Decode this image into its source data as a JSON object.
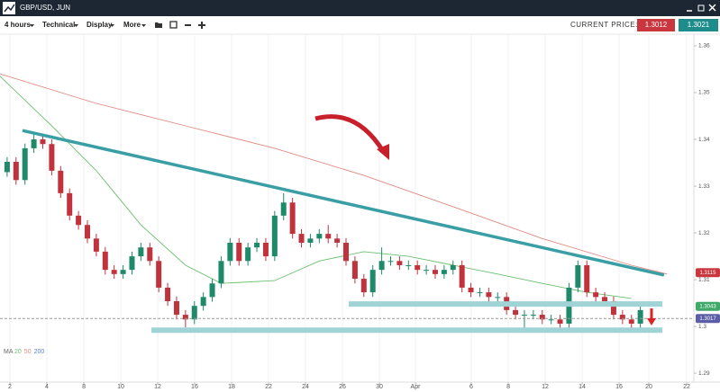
{
  "header": {
    "title": "GBP/USD, JUN"
  },
  "toolbar": {
    "menus": [
      "4 hours",
      "Technical",
      "Display",
      "More"
    ],
    "price_label": "CURRENT PRICE:",
    "prices": [
      {
        "value": 1.3012,
        "color": "#c9363e"
      },
      {
        "value": 1.3021,
        "color": "#1f8c8c"
      }
    ]
  },
  "chart_data": {
    "type": "candlestick",
    "ylim": [
      1.2881,
      1.3625
    ],
    "yticks": [
      1.29,
      1.3,
      1.31,
      1.32,
      1.33,
      1.34,
      1.35,
      1.36
    ],
    "xlim": [
      -0.8,
      77
    ],
    "xticks": [
      {
        "value": 0.31,
        "label": "2"
      },
      {
        "value": 4.45,
        "label": "4"
      },
      {
        "value": 8.6,
        "label": "8"
      },
      {
        "value": 12.74,
        "label": "10"
      },
      {
        "value": 16.88,
        "label": "12"
      },
      {
        "value": 21.02,
        "label": "16"
      },
      {
        "value": 25.17,
        "label": "18"
      },
      {
        "value": 29.31,
        "label": "22"
      },
      {
        "value": 33.45,
        "label": "24"
      },
      {
        "value": 37.6,
        "label": "26"
      },
      {
        "value": 41.74,
        "label": "30"
      },
      {
        "value": 45.78,
        "label": "Apr"
      },
      {
        "value": 52.04,
        "label": "6"
      },
      {
        "value": 56.19,
        "label": "8"
      },
      {
        "value": 60.33,
        "label": "12"
      },
      {
        "value": 64.47,
        "label": "14"
      },
      {
        "value": 68.62,
        "label": "16"
      },
      {
        "value": 71.95,
        "label": "20"
      },
      {
        "value": 76.19,
        "label": "22"
      }
    ],
    "grid": true,
    "up_color": "#1f8a6a",
    "down_color": "#c0333d",
    "ohlc": [
      [
        1.333,
        1.3362,
        1.332,
        1.3352
      ],
      [
        1.3352,
        1.3362,
        1.3303,
        1.3313
      ],
      [
        1.3313,
        1.3391,
        1.3303,
        1.3381
      ],
      [
        1.3381,
        1.3412,
        1.3371,
        1.34
      ],
      [
        1.34,
        1.341,
        1.338,
        1.339
      ],
      [
        1.339,
        1.34,
        1.3323,
        1.3333
      ],
      [
        1.3333,
        1.3343,
        1.3275,
        1.3285
      ],
      [
        1.3285,
        1.3295,
        1.3227,
        1.3237
      ],
      [
        1.3237,
        1.3247,
        1.3207,
        1.3217
      ],
      [
        1.3217,
        1.3227,
        1.3178,
        1.3188
      ],
      [
        1.3188,
        1.3198,
        1.315,
        1.316
      ],
      [
        1.316,
        1.317,
        1.3111,
        1.3121
      ],
      [
        1.3121,
        1.3131,
        1.3102,
        1.3112
      ],
      [
        1.3112,
        1.3131,
        1.3102,
        1.3121
      ],
      [
        1.3121,
        1.316,
        1.3111,
        1.315
      ],
      [
        1.315,
        1.3179,
        1.314,
        1.3169
      ],
      [
        1.3169,
        1.3179,
        1.313,
        1.314
      ],
      [
        1.314,
        1.315,
        1.3073,
        1.3083
      ],
      [
        1.3083,
        1.3093,
        1.3044,
        1.3054
      ],
      [
        1.3054,
        1.3064,
        1.3015,
        1.3025
      ],
      [
        1.3025,
        1.3035,
        1.2998,
        1.3015
      ],
      [
        1.3015,
        1.3054,
        1.3005,
        1.3044
      ],
      [
        1.3044,
        1.3073,
        1.3034,
        1.3063
      ],
      [
        1.3063,
        1.3102,
        1.3053,
        1.3092
      ],
      [
        1.3092,
        1.315,
        1.3082,
        1.314
      ],
      [
        1.314,
        1.3189,
        1.313,
        1.3179
      ],
      [
        1.3179,
        1.3189,
        1.313,
        1.314
      ],
      [
        1.314,
        1.3179,
        1.313,
        1.3169
      ],
      [
        1.3169,
        1.3189,
        1.3159,
        1.3179
      ],
      [
        1.3179,
        1.3189,
        1.314,
        1.315
      ],
      [
        1.315,
        1.3247,
        1.314,
        1.3237
      ],
      [
        1.3237,
        1.3285,
        1.3227,
        1.3265
      ],
      [
        1.3265,
        1.3275,
        1.3188,
        1.3198
      ],
      [
        1.3198,
        1.3208,
        1.3169,
        1.3179
      ],
      [
        1.3179,
        1.3198,
        1.3169,
        1.3188
      ],
      [
        1.3188,
        1.3208,
        1.3178,
        1.3198
      ],
      [
        1.3198,
        1.3217,
        1.3178,
        1.3188
      ],
      [
        1.3188,
        1.3198,
        1.3169,
        1.3179
      ],
      [
        1.3179,
        1.3189,
        1.313,
        1.314
      ],
      [
        1.314,
        1.315,
        1.3092,
        1.3102
      ],
      [
        1.3102,
        1.3112,
        1.3063,
        1.3073
      ],
      [
        1.3073,
        1.3131,
        1.3063,
        1.3121
      ],
      [
        1.3121,
        1.3169,
        1.3111,
        1.314
      ],
      [
        1.314,
        1.315,
        1.313,
        1.314
      ],
      [
        1.314,
        1.315,
        1.3121,
        1.3131
      ],
      [
        1.3131,
        1.3141,
        1.3121,
        1.3131
      ],
      [
        1.3131,
        1.3141,
        1.3111,
        1.3121
      ],
      [
        1.3121,
        1.3131,
        1.3111,
        1.3121
      ],
      [
        1.3121,
        1.3131,
        1.3102,
        1.3112
      ],
      [
        1.3112,
        1.3131,
        1.3102,
        1.3121
      ],
      [
        1.3121,
        1.3141,
        1.3111,
        1.3131
      ],
      [
        1.3131,
        1.3141,
        1.3073,
        1.3083
      ],
      [
        1.3083,
        1.3093,
        1.3063,
        1.3073
      ],
      [
        1.3073,
        1.3083,
        1.3063,
        1.3073
      ],
      [
        1.3073,
        1.3083,
        1.3053,
        1.3063
      ],
      [
        1.3063,
        1.3073,
        1.3053,
        1.3063
      ],
      [
        1.3063,
        1.3073,
        1.3025,
        1.3035
      ],
      [
        1.3035,
        1.3045,
        1.3015,
        1.3025
      ],
      [
        1.3025,
        1.3035,
        1.299,
        1.3025
      ],
      [
        1.3025,
        1.3035,
        1.3015,
        1.3025
      ],
      [
        1.3025,
        1.3035,
        1.3005,
        1.3015
      ],
      [
        1.3015,
        1.3025,
        1.3005,
        1.3015
      ],
      [
        1.3015,
        1.3025,
        1.2988,
        1.3006
      ],
      [
        1.3006,
        1.3093,
        1.2996,
        1.3083
      ],
      [
        1.3083,
        1.3141,
        1.3073,
        1.3131
      ],
      [
        1.3131,
        1.3141,
        1.3063,
        1.3073
      ],
      [
        1.3073,
        1.3083,
        1.3053,
        1.3063
      ],
      [
        1.3063,
        1.3073,
        1.3044,
        1.3054
      ],
      [
        1.3054,
        1.3064,
        1.3015,
        1.3025
      ],
      [
        1.3025,
        1.3035,
        1.3005,
        1.3015
      ],
      [
        1.3015,
        1.3025,
        1.2996,
        1.3006
      ],
      [
        1.3006,
        1.3045,
        1.2996,
        1.3035
      ]
    ],
    "ma_label": "MA",
    "moving_averages": [
      {
        "period": 20,
        "color": "#6cc070",
        "x": [
          -0.8,
          5,
          10,
          15,
          20,
          24,
          30,
          35,
          40,
          45,
          50,
          55,
          60,
          65,
          70
        ],
        "values": [
          1.3535,
          1.3429,
          1.3333,
          1.3217,
          1.3131,
          1.3092,
          1.3098,
          1.314,
          1.316,
          1.315,
          1.3131,
          1.3112,
          1.3092,
          1.3073,
          1.306
        ]
      },
      {
        "period": 50,
        "color": "#e08a80",
        "x": [
          -0.8,
          10,
          20,
          30,
          40,
          50,
          60,
          70,
          74
        ],
        "values": [
          1.354,
          1.3477,
          1.3429,
          1.3381,
          1.3323,
          1.3256,
          1.3188,
          1.3131,
          1.3112
        ]
      },
      {
        "period": 200,
        "color": "#5b7fd6"
      }
    ],
    "trendline": {
      "color": "#3a9ea5",
      "x": [
        1.73,
        73.66
      ],
      "values": [
        1.3419,
        1.311
      ]
    },
    "support_zones": [
      {
        "value": 1.3048,
        "x": [
          38.3,
          73.47
        ]
      },
      {
        "value": 1.2992,
        "x": [
          16.18,
          73.47
        ]
      }
    ],
    "support_color": "#9fd3d6",
    "price_tags": [
      {
        "value": 1.3115,
        "color": "#c9363e"
      },
      {
        "value": 1.3043,
        "color": "#3fa96a"
      },
      {
        "value": 1.3017,
        "color": "#5b5ea6",
        "dashed": true
      }
    ]
  }
}
